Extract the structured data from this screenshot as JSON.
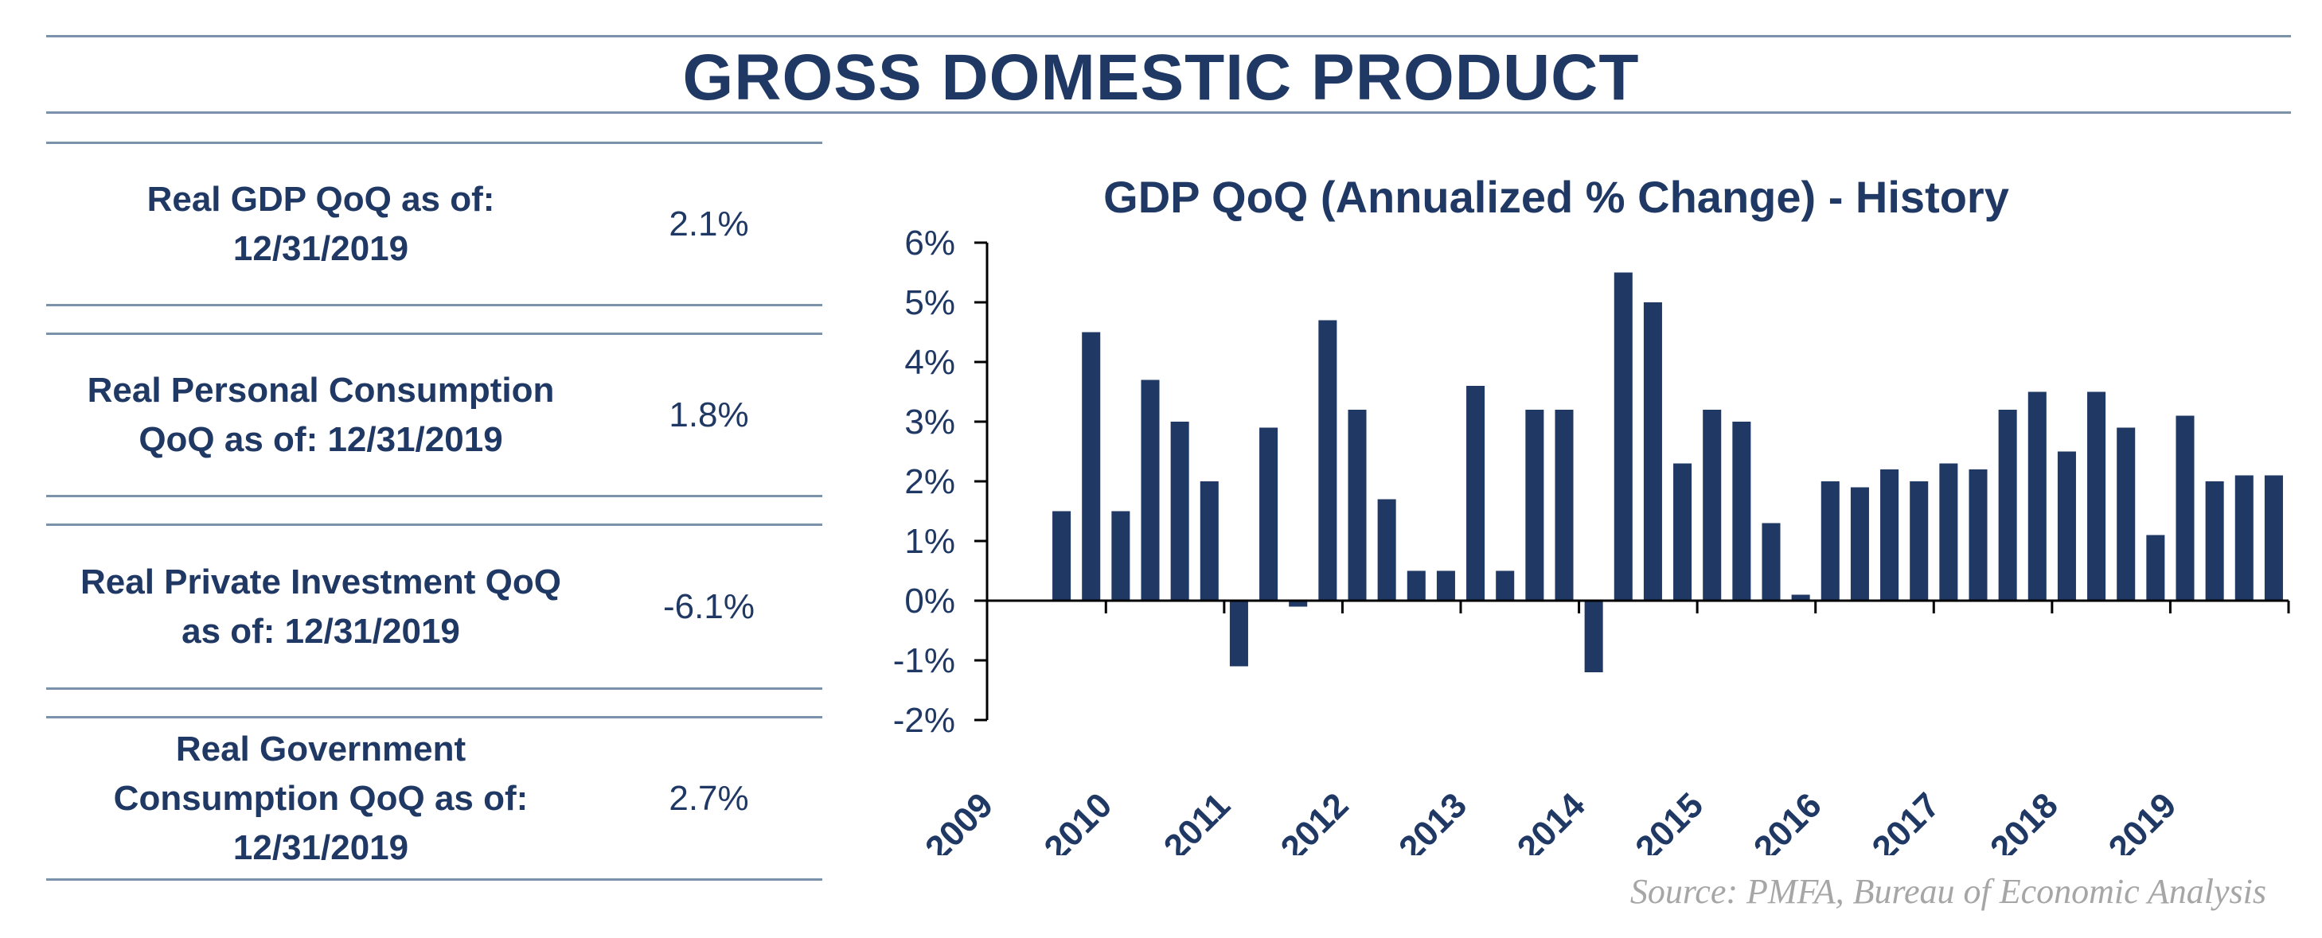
{
  "header": {
    "title": "GROSS DOMESTIC PRODUCT"
  },
  "metrics": [
    {
      "label_line1": "Real GDP QoQ as of:",
      "label_line2": "12/31/2019",
      "value": "2.1%"
    },
    {
      "label_line1": "Real Personal Consumption",
      "label_line2": "QoQ as of: 12/31/2019",
      "value": "1.8%"
    },
    {
      "label_line1": "Real Private Investment QoQ",
      "label_line2": "as of: 12/31/2019",
      "value": "-6.1%"
    },
    {
      "label_line1": "Real Government",
      "label_line2": "Consumption QoQ as of:",
      "label_line3": "12/31/2019",
      "value": "2.7%"
    }
  ],
  "chart_data": {
    "type": "bar",
    "title": "GDP QoQ (Annualized % Change) - History",
    "xlabel": "",
    "ylabel": "",
    "ylim": [
      -2,
      6
    ],
    "y_ticks": [
      "6%",
      "5%",
      "4%",
      "3%",
      "2%",
      "1%",
      "0%",
      "-1%",
      "-2%"
    ],
    "x_tick_labels": [
      "2009",
      "2010",
      "2011",
      "2012",
      "2013",
      "2014",
      "2015",
      "2016",
      "2017",
      "2018",
      "2019"
    ],
    "categories": [
      "2009 Q3",
      "2009 Q4",
      "2010 Q1",
      "2010 Q2",
      "2010 Q3",
      "2010 Q4",
      "2011 Q1",
      "2011 Q2",
      "2011 Q3",
      "2011 Q4",
      "2012 Q1",
      "2012 Q2",
      "2012 Q3",
      "2012 Q4",
      "2013 Q1",
      "2013 Q2",
      "2013 Q3",
      "2013 Q4",
      "2014 Q1",
      "2014 Q2",
      "2014 Q3",
      "2014 Q4",
      "2015 Q1",
      "2015 Q2",
      "2015 Q3",
      "2015 Q4",
      "2016 Q1",
      "2016 Q2",
      "2016 Q3",
      "2016 Q4",
      "2017 Q1",
      "2017 Q2",
      "2017 Q3",
      "2017 Q4",
      "2018 Q1",
      "2018 Q2",
      "2018 Q3",
      "2018 Q4",
      "2019 Q1",
      "2019 Q2",
      "2019 Q3",
      "2019 Q4"
    ],
    "values": [
      1.5,
      4.5,
      1.5,
      3.7,
      3.0,
      2.0,
      -1.1,
      2.9,
      -0.1,
      4.7,
      3.2,
      1.7,
      0.5,
      0.5,
      3.6,
      0.5,
      3.2,
      3.2,
      -1.2,
      5.5,
      5.0,
      2.3,
      3.2,
      3.0,
      1.3,
      0.1,
      2.0,
      1.9,
      2.2,
      2.0,
      2.3,
      2.2,
      3.2,
      3.5,
      2.5,
      3.5,
      2.9,
      1.1,
      3.1,
      2.0,
      2.1,
      2.1
    ],
    "bar_color": "#1f3864",
    "grid": false,
    "legend": "none"
  },
  "source": "Source:  PMFA,  Bureau of Economic Analysis"
}
